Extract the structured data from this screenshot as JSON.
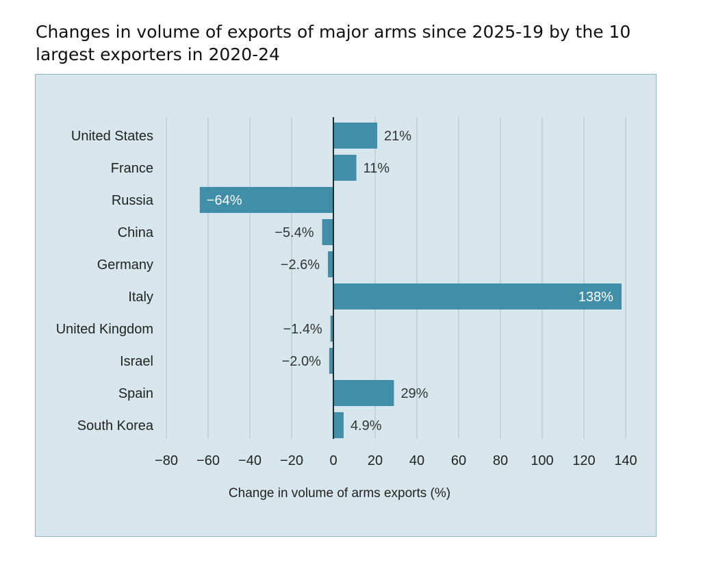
{
  "title": "Changes in volume of exports of major arms since 2025-19 by the 10 largest exporters in 2020-24",
  "colors": {
    "bar": "#418ea9",
    "panel": "#d6e6ec",
    "grid": "#bccfd6",
    "text": "#222222"
  },
  "chart_data": {
    "type": "bar",
    "orientation": "horizontal",
    "categories": [
      "United States",
      "France",
      "Russia",
      "China",
      "Germany",
      "Italy",
      "United Kingdom",
      "Israel",
      "Spain",
      "South Korea"
    ],
    "values": [
      21,
      11,
      -64,
      -5.4,
      -2.6,
      138,
      -1.4,
      -2.0,
      29,
      4.9
    ],
    "value_labels": [
      "21%",
      "11%",
      "−64%",
      "−5.4%",
      "−2.6%",
      "138%",
      "−1.4%",
      "−2.0%",
      "29%",
      "4.9%"
    ],
    "xlabel": "Change in volume of arms exports (%)",
    "xlim": [
      -80,
      140
    ],
    "xticks": [
      -80,
      -60,
      -40,
      -20,
      0,
      20,
      40,
      60,
      80,
      100,
      120,
      140
    ],
    "xtick_labels": [
      "−80",
      "−60",
      "−40",
      "−20",
      "0",
      "20",
      "40",
      "60",
      "80",
      "100",
      "120",
      "140"
    ],
    "grid": true
  }
}
